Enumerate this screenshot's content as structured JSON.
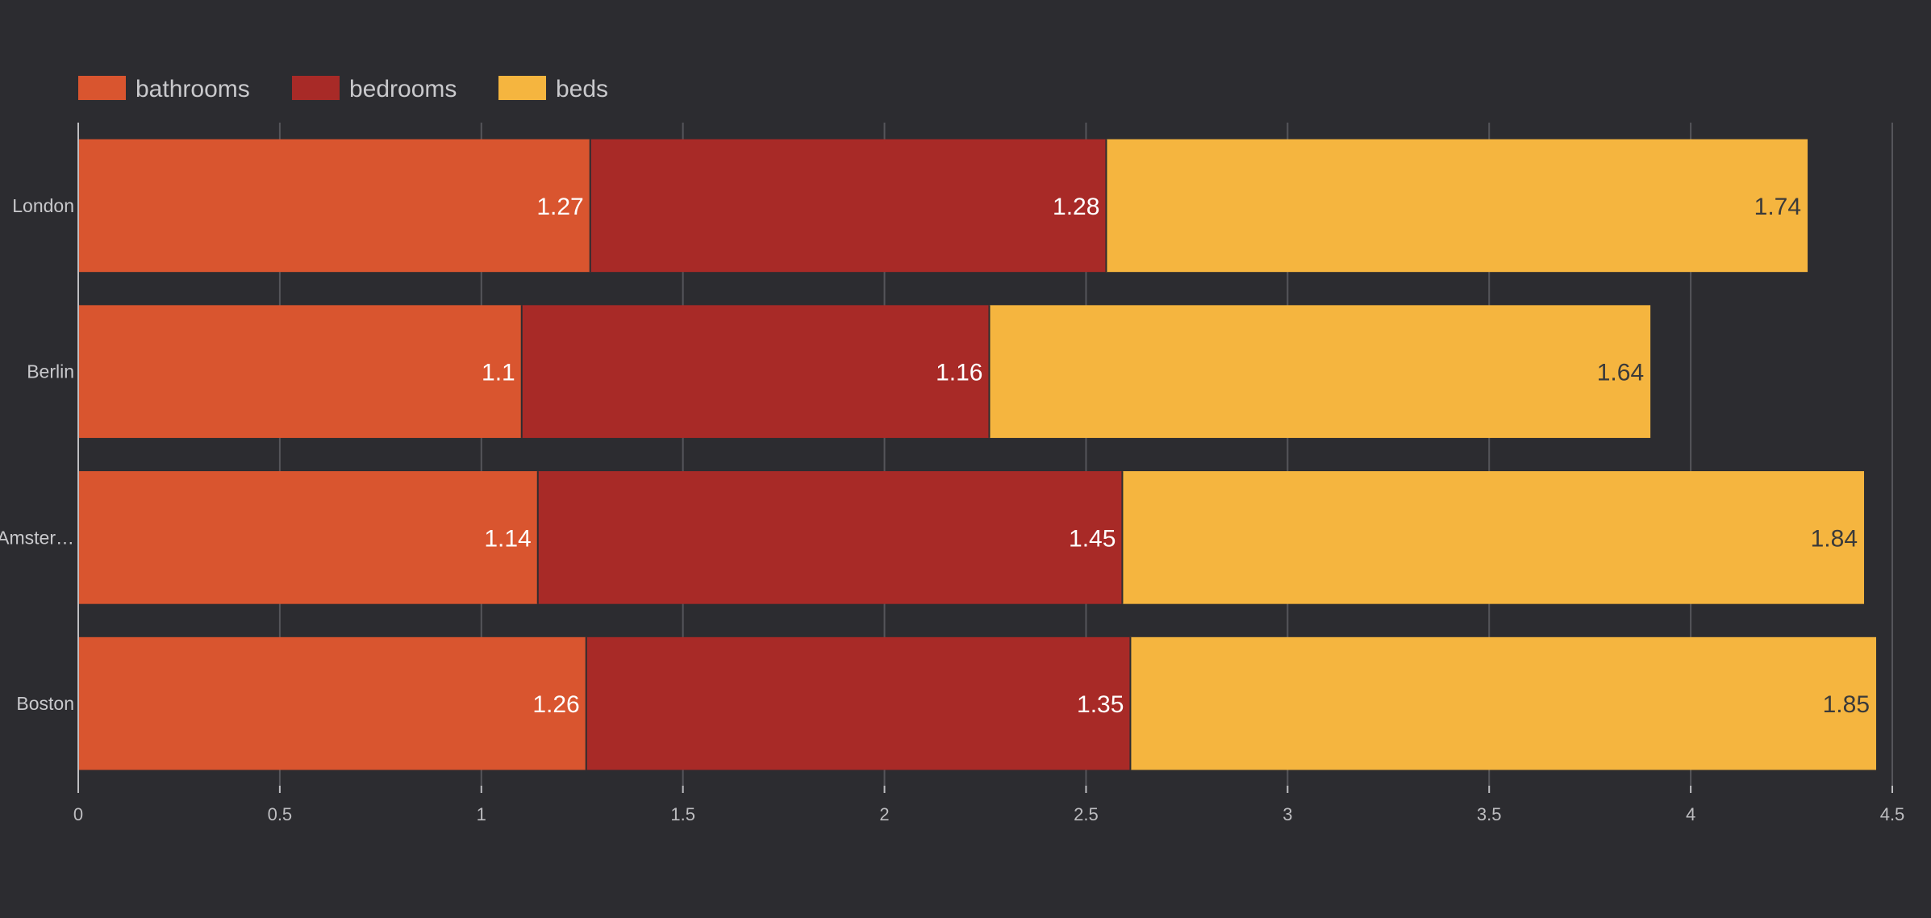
{
  "chart_data": {
    "type": "bar",
    "orientation": "horizontal",
    "stacked": true,
    "categories": [
      "London",
      "Berlin",
      "Amster…",
      "Boston"
    ],
    "series": [
      {
        "name": "bathrooms",
        "color": "#d9552f",
        "label_color": "#ffffff",
        "values": [
          1.27,
          1.1,
          1.14,
          1.26
        ]
      },
      {
        "name": "bedrooms",
        "color": "#a82a27",
        "label_color": "#ffffff",
        "values": [
          1.28,
          1.16,
          1.45,
          1.35
        ]
      },
      {
        "name": "beds",
        "color": "#f5b53f",
        "label_color": "#3a3a3a",
        "values": [
          1.74,
          1.64,
          1.84,
          1.85
        ]
      }
    ],
    "xlim": [
      0,
      4.5
    ],
    "xticks": [
      "0",
      "0.5",
      "1",
      "1.5",
      "2",
      "2.5",
      "3",
      "3.5",
      "4",
      "4.5"
    ],
    "grid": true,
    "legend": "top-left",
    "background": "#2c2c30"
  }
}
